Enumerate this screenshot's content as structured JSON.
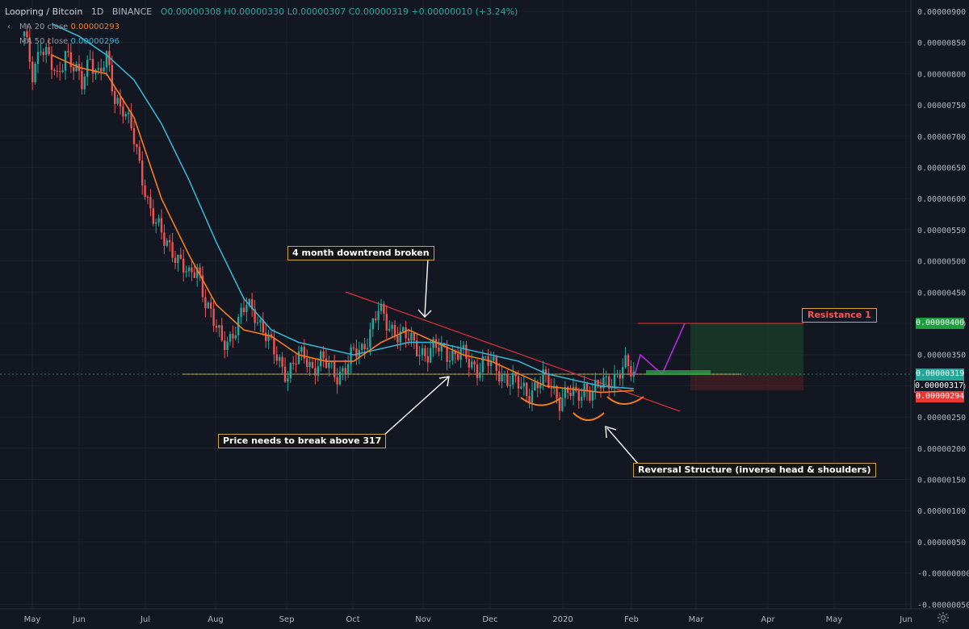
{
  "header": {
    "symbol": "Loopring / Bitcoin",
    "interval": "1D",
    "exchange": "BINANCE",
    "ohlc": "O0.00000308 H0.00000330 L0.00000307 C0.00000319 +0.00000010 (+3.24%)"
  },
  "indicators": [
    {
      "label": "MA 20 close",
      "value": "0.00000293",
      "color": "#f57c1f"
    },
    {
      "label": "MA 50 close",
      "value": "0.00000296",
      "color": "#38b2cf"
    }
  ],
  "annotations": {
    "downtrend": "4 month downtrend broken",
    "break_level": "Price needs to break above 317",
    "reversal": "Reversal Structure (inverse head & shoulders)",
    "resistance": "Resistance 1"
  },
  "price_tags": [
    {
      "value": "0.00000400",
      "bg": "#1e9e3e"
    },
    {
      "value": "0.00000319",
      "bg": "#26a69a"
    },
    {
      "value": "0.00000317",
      "bg": "#131722"
    },
    {
      "value": "0.00000294",
      "bg": "#e53935"
    }
  ],
  "chart_data": {
    "type": "candlestick",
    "y_axis": {
      "min": 0,
      "max": 9e-06,
      "ticks": [
        "0.00000900",
        "0.00000850",
        "0.00000800",
        "0.00000750",
        "0.00000700",
        "0.00000650",
        "0.00000600",
        "0.00000550",
        "0.00000500",
        "0.00000450",
        "0.00000400",
        "0.00000350",
        "0.00000300",
        "0.00000250",
        "0.00000200",
        "0.00000150",
        "0.00000100",
        "0.00000050",
        "-0.00000000",
        "-0.00000050"
      ]
    },
    "x_axis": {
      "labels": [
        "May",
        "Jun",
        "Jul",
        "Aug",
        "Sep",
        "Oct",
        "Nov",
        "Dec",
        "2020",
        "Feb",
        "Mar",
        "Apr",
        "May",
        "Jun"
      ]
    },
    "levels": {
      "resistance_1": 4.0,
      "break_line": 3.17,
      "last_price": 3.19,
      "stop": 2.94
    },
    "price_path": [
      [
        0,
        8.6
      ],
      [
        3,
        8.0
      ],
      [
        6,
        8.5
      ],
      [
        9,
        8.2
      ],
      [
        12,
        7.9
      ],
      [
        15,
        8.4
      ],
      [
        18,
        8.1
      ],
      [
        21,
        7.8
      ],
      [
        24,
        8.3
      ],
      [
        27,
        8.0
      ],
      [
        30,
        8.2
      ],
      [
        33,
        7.6
      ],
      [
        36,
        7.5
      ],
      [
        39,
        7.1
      ],
      [
        42,
        6.5
      ],
      [
        45,
        6.0
      ],
      [
        48,
        5.6
      ],
      [
        51,
        5.3
      ],
      [
        54,
        5.2
      ],
      [
        57,
        5.0
      ],
      [
        60,
        4.7
      ],
      [
        63,
        4.9
      ],
      [
        66,
        4.4
      ],
      [
        69,
        4.0
      ],
      [
        72,
        3.7
      ],
      [
        75,
        3.8
      ],
      [
        78,
        4.0
      ],
      [
        81,
        4.3
      ],
      [
        84,
        4.2
      ],
      [
        87,
        3.9
      ],
      [
        90,
        3.6
      ],
      [
        93,
        3.4
      ],
      [
        96,
        3.2
      ],
      [
        99,
        3.4
      ],
      [
        102,
        3.5
      ],
      [
        105,
        3.3
      ],
      [
        108,
        3.4
      ],
      [
        111,
        3.3
      ],
      [
        114,
        3.2
      ],
      [
        117,
        3.3
      ],
      [
        120,
        3.5
      ],
      [
        123,
        3.6
      ],
      [
        126,
        3.9
      ],
      [
        129,
        4.2
      ],
      [
        132,
        4.0
      ],
      [
        135,
        3.9
      ],
      [
        138,
        3.8
      ],
      [
        141,
        3.7
      ],
      [
        144,
        3.6
      ],
      [
        147,
        3.5
      ],
      [
        150,
        3.6
      ],
      [
        153,
        3.6
      ],
      [
        156,
        3.5
      ],
      [
        159,
        3.5
      ],
      [
        162,
        3.4
      ],
      [
        165,
        3.3
      ],
      [
        168,
        3.4
      ],
      [
        171,
        3.3
      ],
      [
        174,
        3.2
      ],
      [
        177,
        3.1
      ],
      [
        180,
        3.0
      ],
      [
        183,
        2.9
      ],
      [
        186,
        3.0
      ],
      [
        189,
        3.1
      ],
      [
        192,
        3.0
      ],
      [
        195,
        2.8
      ],
      [
        198,
        2.9
      ],
      [
        201,
        2.8
      ],
      [
        204,
        3.0
      ],
      [
        207,
        2.9
      ],
      [
        210,
        3.0
      ],
      [
        213,
        3.1
      ],
      [
        216,
        3.2
      ],
      [
        219,
        3.3
      ],
      [
        222,
        3.19
      ]
    ],
    "ma20": [
      [
        10,
        8.3
      ],
      [
        20,
        8.1
      ],
      [
        30,
        8.0
      ],
      [
        40,
        7.3
      ],
      [
        50,
        6.0
      ],
      [
        60,
        5.1
      ],
      [
        70,
        4.3
      ],
      [
        80,
        3.9
      ],
      [
        90,
        3.8
      ],
      [
        100,
        3.5
      ],
      [
        110,
        3.4
      ],
      [
        120,
        3.4
      ],
      [
        130,
        3.7
      ],
      [
        140,
        3.9
      ],
      [
        150,
        3.7
      ],
      [
        160,
        3.5
      ],
      [
        170,
        3.4
      ],
      [
        180,
        3.2
      ],
      [
        190,
        3.0
      ],
      [
        200,
        2.95
      ],
      [
        210,
        2.9
      ],
      [
        222,
        2.93
      ]
    ],
    "ma50": [
      [
        10,
        8.8
      ],
      [
        20,
        8.6
      ],
      [
        30,
        8.3
      ],
      [
        40,
        7.9
      ],
      [
        50,
        7.2
      ],
      [
        60,
        6.3
      ],
      [
        70,
        5.3
      ],
      [
        80,
        4.4
      ],
      [
        90,
        3.9
      ],
      [
        100,
        3.7
      ],
      [
        110,
        3.6
      ],
      [
        120,
        3.5
      ],
      [
        130,
        3.6
      ],
      [
        140,
        3.7
      ],
      [
        150,
        3.7
      ],
      [
        160,
        3.6
      ],
      [
        170,
        3.5
      ],
      [
        180,
        3.4
      ],
      [
        190,
        3.2
      ],
      [
        200,
        3.1
      ],
      [
        210,
        3.0
      ],
      [
        222,
        2.96
      ]
    ]
  }
}
